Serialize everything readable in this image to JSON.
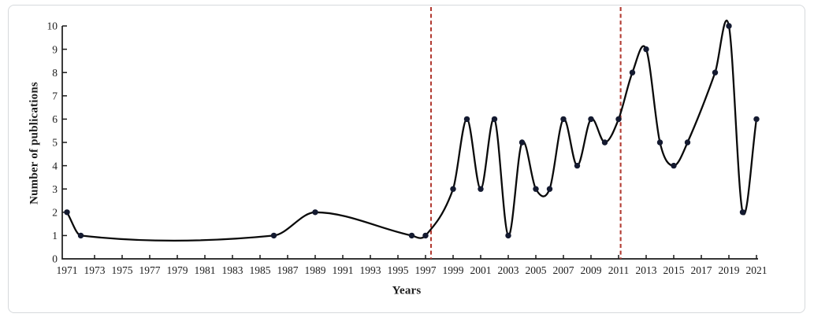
{
  "frame": {
    "background": "#ffffff",
    "border_color": "#d6d9dc"
  },
  "chart_data": {
    "type": "line",
    "title": "",
    "xlabel": "Years",
    "ylabel": "Number of publications",
    "x_tick_labels": [
      "1971",
      "1973",
      "1975",
      "1977",
      "1979",
      "1981",
      "1983",
      "1985",
      "1987",
      "1989",
      "1991",
      "1993",
      "1995",
      "1997",
      "1999",
      "2001",
      "2003",
      "2005",
      "2007",
      "2009",
      "2011",
      "2013",
      "2015",
      "2017",
      "2019",
      "2021"
    ],
    "y_tick_labels": [
      "0",
      "1",
      "2",
      "3",
      "4",
      "5",
      "6",
      "7",
      "8",
      "9",
      "10"
    ],
    "xlim": [
      1971,
      2021
    ],
    "ylim": [
      0,
      10
    ],
    "grid": false,
    "legend": "none",
    "line_style": "smooth",
    "axis_color": "#1a1a1a",
    "text_color": "#1c1c1c",
    "series": [
      {
        "name": "Number of publications",
        "color": "#0a0a0a",
        "marker": "circle",
        "marker_color": "#141a30",
        "points": [
          [
            1971,
            2
          ],
          [
            1972,
            1
          ],
          [
            1986,
            1
          ],
          [
            1989,
            2
          ],
          [
            1996,
            1
          ],
          [
            1997,
            1
          ],
          [
            1999,
            3
          ],
          [
            2000,
            6
          ],
          [
            2001,
            3
          ],
          [
            2002,
            6
          ],
          [
            2003,
            1
          ],
          [
            2004,
            5
          ],
          [
            2005,
            3
          ],
          [
            2006,
            3
          ],
          [
            2007,
            6
          ],
          [
            2008,
            4
          ],
          [
            2009,
            6
          ],
          [
            2010,
            5
          ],
          [
            2011,
            6
          ],
          [
            2012,
            8
          ],
          [
            2013,
            9
          ],
          [
            2014,
            5
          ],
          [
            2015,
            4
          ],
          [
            2016,
            5
          ],
          [
            2018,
            8
          ],
          [
            2019,
            10
          ],
          [
            2020,
            2
          ],
          [
            2021,
            6
          ]
        ]
      }
    ],
    "annotations": [
      {
        "type": "vline",
        "name": "period-divider-1997",
        "x": 1997.4,
        "style": "dashed",
        "color": "#b23b32"
      },
      {
        "type": "vline",
        "name": "period-divider-2011",
        "x": 2011.15,
        "style": "dashed",
        "color": "#b23b32"
      }
    ]
  }
}
